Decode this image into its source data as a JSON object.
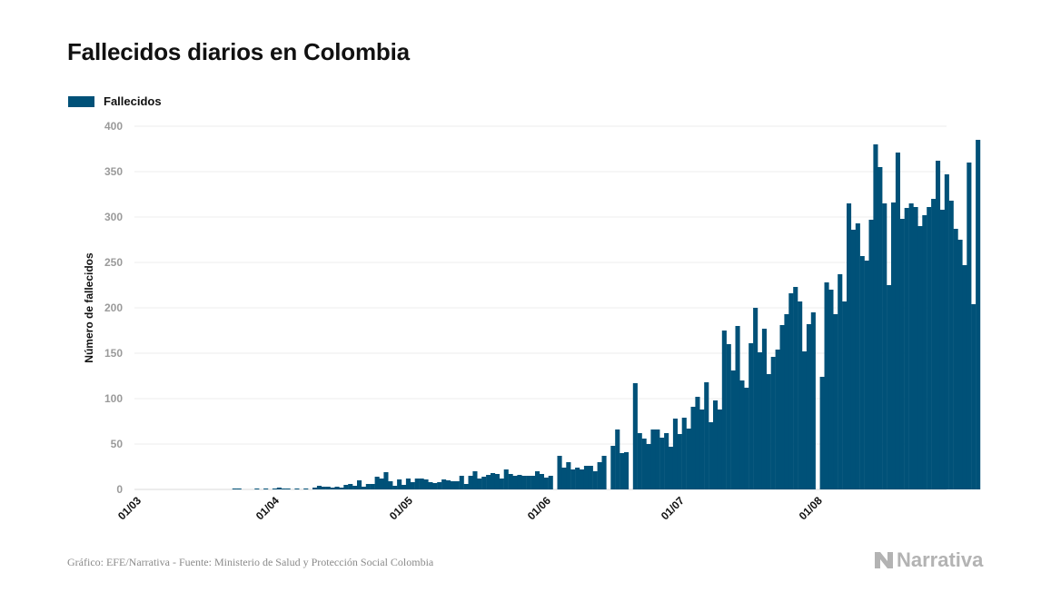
{
  "title": "Fallecidos diarios en Colombia",
  "legend": {
    "label": "Fallecidos",
    "color": "#005178"
  },
  "source": "Gráfico: EFE/Narrativa - Fuente: Ministerio de Salud y Protección Social Colombia",
  "brand": "Narrativa",
  "chart_data": {
    "type": "bar",
    "title": "Fallecidos diarios en Colombia",
    "xlabel": "",
    "ylabel": "Número de fallecidos",
    "ylim": [
      0,
      400
    ],
    "yticks": [
      0,
      50,
      100,
      150,
      200,
      250,
      300,
      350,
      400
    ],
    "xtick_labels": [
      "01/03",
      "01/04",
      "01/05",
      "01/06",
      "01/07",
      "01/08"
    ],
    "grid": true,
    "legend_position": "top-left",
    "start_date": "01/03",
    "series": [
      {
        "name": "Fallecidos",
        "color": "#005178",
        "values": [
          0,
          0,
          0,
          0,
          0,
          0,
          0,
          0,
          0,
          0,
          0,
          0,
          0,
          0,
          0,
          0,
          0,
          0,
          0,
          0,
          0,
          0,
          1,
          1,
          0,
          0,
          0,
          1,
          0,
          1,
          0,
          1,
          2,
          1,
          1,
          0,
          1,
          0,
          1,
          0,
          2,
          4,
          3,
          3,
          2,
          3,
          2,
          5,
          6,
          4,
          10,
          3,
          6,
          6,
          14,
          12,
          19,
          9,
          4,
          11,
          5,
          12,
          8,
          12,
          12,
          11,
          8,
          7,
          8,
          11,
          10,
          9,
          9,
          15,
          6,
          15,
          20,
          12,
          14,
          16,
          18,
          17,
          12,
          22,
          17,
          15,
          16,
          15,
          15,
          15,
          20,
          17,
          13,
          15,
          0,
          37,
          24,
          30,
          22,
          24,
          22,
          26,
          26,
          20,
          30,
          37,
          0,
          48,
          66,
          40,
          41,
          0,
          117,
          62,
          56,
          50,
          66,
          66,
          57,
          62,
          47,
          78,
          61,
          79,
          67,
          91,
          102,
          88,
          118,
          74,
          98,
          88,
          175,
          160,
          131,
          180,
          120,
          112,
          161,
          200,
          151,
          177,
          127,
          146,
          154,
          181,
          193,
          216,
          223,
          207,
          152,
          182,
          195,
          0,
          124,
          228,
          220,
          193,
          237,
          207,
          315,
          286,
          293,
          257,
          252,
          297,
          380,
          355,
          315,
          225,
          316,
          371,
          298,
          310,
          315,
          311,
          290,
          302,
          311,
          320,
          362,
          308,
          347,
          318,
          287,
          275,
          247,
          360,
          204,
          385
        ]
      }
    ]
  }
}
